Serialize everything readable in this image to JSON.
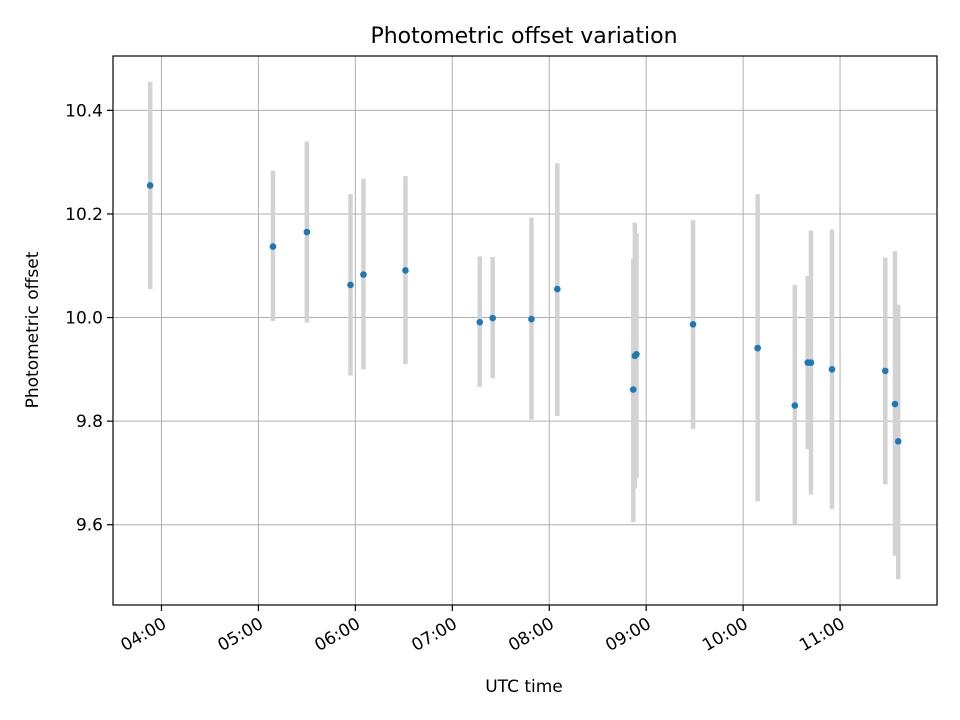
{
  "chart_data": {
    "type": "scatter",
    "title": "Photometric offset variation",
    "xlabel": "UTC time",
    "ylabel": "Photometric offset",
    "x_axis_type": "time",
    "xlim": [
      "03:30",
      "12:00"
    ],
    "ylim": [
      9.445,
      10.505
    ],
    "x_ticks": [
      "04:00",
      "05:00",
      "06:00",
      "07:00",
      "08:00",
      "09:00",
      "10:00",
      "11:00"
    ],
    "y_ticks": [
      "9.6",
      "9.8",
      "10.0",
      "10.2",
      "10.4"
    ],
    "grid": true,
    "colors": {
      "marker": "#1f77b4",
      "errorbar": "#d3d3d3"
    },
    "points": [
      {
        "x": "03:53",
        "y": 10.255,
        "low": 10.055,
        "high": 10.455
      },
      {
        "x": "05:09",
        "y": 10.137,
        "low": 9.993,
        "high": 10.284
      },
      {
        "x": "05:30",
        "y": 10.165,
        "low": 9.99,
        "high": 10.34
      },
      {
        "x": "05:57",
        "y": 10.063,
        "low": 9.888,
        "high": 10.238
      },
      {
        "x": "06:05",
        "y": 10.083,
        "low": 9.9,
        "high": 10.268
      },
      {
        "x": "06:31",
        "y": 10.091,
        "low": 9.91,
        "high": 10.273
      },
      {
        "x": "07:17",
        "y": 9.991,
        "low": 9.866,
        "high": 10.118
      },
      {
        "x": "07:25",
        "y": 9.999,
        "low": 9.883,
        "high": 10.117
      },
      {
        "x": "07:49",
        "y": 9.997,
        "low": 9.803,
        "high": 10.193
      },
      {
        "x": "08:05",
        "y": 10.055,
        "low": 9.81,
        "high": 10.298
      },
      {
        "x": "08:52",
        "y": 9.861,
        "low": 9.605,
        "high": 10.113
      },
      {
        "x": "08:53",
        "y": 9.926,
        "low": 9.67,
        "high": 10.183
      },
      {
        "x": "08:54",
        "y": 9.929,
        "low": 9.69,
        "high": 10.163
      },
      {
        "x": "09:29",
        "y": 9.987,
        "low": 9.785,
        "high": 10.188
      },
      {
        "x": "10:09",
        "y": 9.941,
        "low": 9.645,
        "high": 10.238
      },
      {
        "x": "10:32",
        "y": 9.83,
        "low": 9.598,
        "high": 10.063
      },
      {
        "x": "10:40",
        "y": 9.913,
        "low": 9.746,
        "high": 10.08
      },
      {
        "x": "10:42",
        "y": 9.913,
        "low": 9.658,
        "high": 10.168
      },
      {
        "x": "10:55",
        "y": 9.9,
        "low": 9.63,
        "high": 10.17
      },
      {
        "x": "11:28",
        "y": 9.897,
        "low": 9.678,
        "high": 10.116
      },
      {
        "x": "11:34",
        "y": 9.833,
        "low": 9.54,
        "high": 10.128
      },
      {
        "x": "11:36",
        "y": 9.761,
        "low": 9.495,
        "high": 10.025
      }
    ]
  }
}
